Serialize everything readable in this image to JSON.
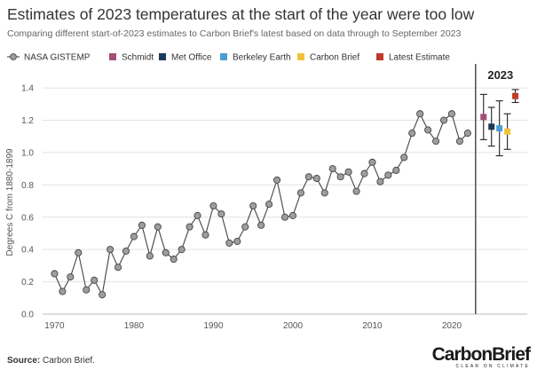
{
  "title": "Estimates of 2023 temperatures at the start of the year were too low",
  "subtitle": "Comparing different start-of-2023 estimates to Carbon Brief's latest based on data through to September 2023",
  "source_label": "Source:",
  "source_text": "Carbon Brief.",
  "logo": {
    "word": "CarbonBrief",
    "tagline": "CLEAR ON CLIMATE"
  },
  "chart_data": {
    "type": "scatter",
    "ylabel": "Degrees C from 1880-1899",
    "xlim": [
      1968.5,
      2029.5
    ],
    "ylim": [
      0,
      1.45
    ],
    "yticks": [
      0.0,
      0.2,
      0.4,
      0.6,
      0.8,
      1.0,
      1.2,
      1.4
    ],
    "ytick_labels": [
      "0.0",
      "0.2",
      "0.4",
      "0.6",
      "0.8",
      "1.0",
      "1.2",
      "1.4"
    ],
    "xticks": [
      1970,
      1980,
      1990,
      2000,
      2010,
      2020
    ],
    "xtick_labels": [
      "1970",
      "1980",
      "1990",
      "2000",
      "2010",
      "2020"
    ],
    "grid": true,
    "legend_position": "top",
    "divider_x": 2023,
    "divider_label": "2023",
    "series": [
      {
        "name": "NASA GISTEMP",
        "color": "#9e9e9e",
        "line_color": "#444444",
        "x": [
          1970,
          1971,
          1972,
          1973,
          1974,
          1975,
          1976,
          1977,
          1978,
          1979,
          1980,
          1981,
          1982,
          1983,
          1984,
          1985,
          1986,
          1987,
          1988,
          1989,
          1990,
          1991,
          1992,
          1993,
          1994,
          1995,
          1996,
          1997,
          1998,
          1999,
          2000,
          2001,
          2002,
          2003,
          2004,
          2005,
          2006,
          2007,
          2008,
          2009,
          2010,
          2011,
          2012,
          2013,
          2014,
          2015,
          2016,
          2017,
          2018,
          2019,
          2020,
          2021,
          2022
        ],
        "y": [
          0.25,
          0.14,
          0.23,
          0.38,
          0.15,
          0.21,
          0.12,
          0.4,
          0.29,
          0.39,
          0.48,
          0.55,
          0.36,
          0.54,
          0.38,
          0.34,
          0.4,
          0.54,
          0.61,
          0.49,
          0.67,
          0.62,
          0.44,
          0.45,
          0.54,
          0.67,
          0.55,
          0.68,
          0.83,
          0.6,
          0.61,
          0.75,
          0.85,
          0.84,
          0.75,
          0.9,
          0.85,
          0.88,
          0.76,
          0.87,
          0.94,
          0.82,
          0.86,
          0.89,
          0.97,
          1.12,
          1.24,
          1.14,
          1.07,
          1.2,
          1.24,
          1.07,
          1.12
        ]
      }
    ],
    "estimates": [
      {
        "name": "Schmidt",
        "color": "#a34f7a",
        "x": 2024,
        "y": 1.22,
        "low": 1.08,
        "high": 1.36
      },
      {
        "name": "Met Office",
        "color": "#1b3a57",
        "x": 2025,
        "y": 1.16,
        "low": 1.04,
        "high": 1.28
      },
      {
        "name": "Berkeley Earth",
        "color": "#4a9ed4",
        "x": 2026,
        "y": 1.15,
        "low": 0.98,
        "high": 1.32
      },
      {
        "name": "Carbon Brief",
        "color": "#f0c23c",
        "x": 2027,
        "y": 1.13,
        "low": 1.02,
        "high": 1.24
      },
      {
        "name": "Latest Estimate",
        "color": "#c0392b",
        "x": 2028,
        "y": 1.35,
        "low": 1.31,
        "high": 1.39
      }
    ]
  }
}
